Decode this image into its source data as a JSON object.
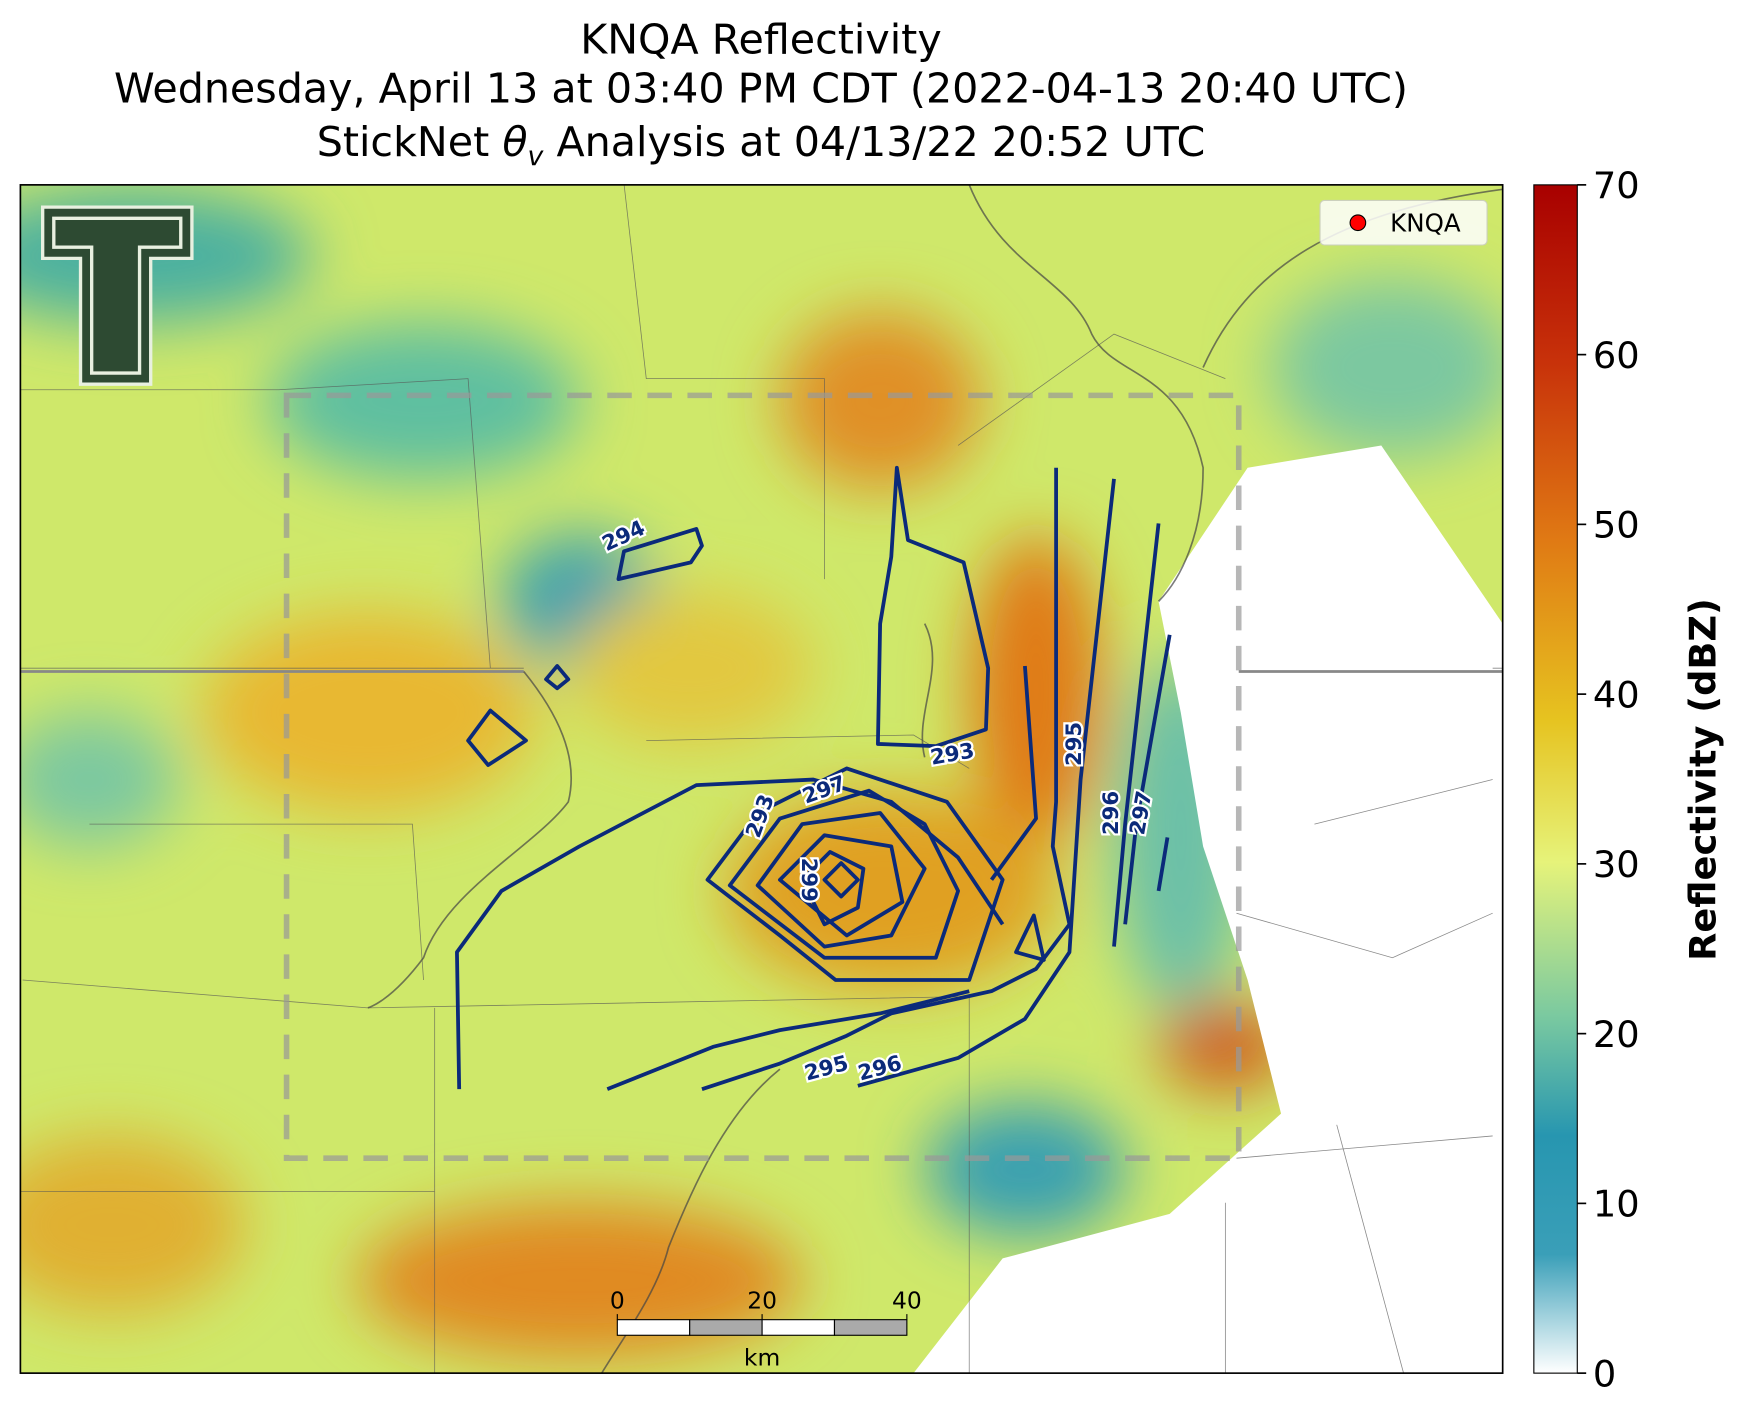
{
  "title": {
    "line1": "KNQA Reflectivity",
    "line2": "Wednesday, April 13 at 03:40 PM CDT (2022-04-13 20:40 UTC)",
    "line3": {
      "prefix": "StickNet ",
      "symbol": "θ",
      "subscript": "v",
      "suffix": " Analysis at 04/13/22 20:52 UTC"
    }
  },
  "legend": {
    "label": "KNQA",
    "color": "#ff0000"
  },
  "colorbar": {
    "label": "Reflectivity (dBZ)",
    "lim": [
      0,
      70
    ],
    "ticks": [
      0,
      10,
      20,
      30,
      40,
      50,
      60,
      70
    ]
  },
  "scale_bar": {
    "ticks": [
      0,
      20,
      40
    ],
    "unit": "km"
  },
  "contour_labels": [
    294,
    293,
    293,
    297,
    299,
    295,
    296,
    296,
    297,
    295
  ]
}
